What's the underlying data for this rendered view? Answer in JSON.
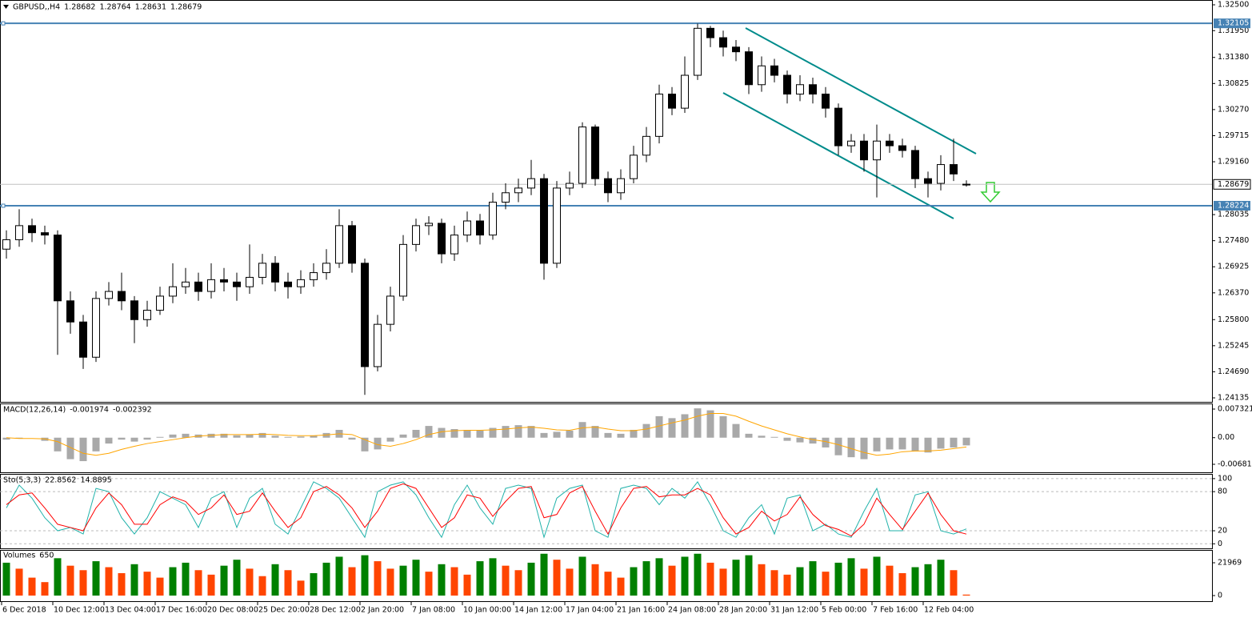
{
  "chart_data": {
    "type": "candlestick",
    "symbol": "GBPUSD,,H4",
    "open": [
      1.273,
      1.275,
      1.278,
      1.2765,
      1.276,
      1.262,
      1.2575,
      1.25,
      1.2625,
      1.264,
      1.262,
      1.258,
      1.26,
      1.263,
      1.265,
      1.266,
      1.264,
      1.2665,
      1.266,
      1.265,
      1.267,
      1.27,
      1.266,
      1.265,
      1.2665,
      1.268,
      1.27,
      1.278,
      1.27,
      1.248,
      1.257,
      1.263,
      1.274,
      1.278,
      1.2785,
      1.272,
      1.276,
      1.279,
      1.276,
      1.283,
      1.285,
      1.286,
      1.288,
      1.27,
      1.286,
      1.287,
      1.299,
      1.288,
      1.285,
      1.288,
      1.293,
      1.297,
      1.306,
      1.303,
      1.31,
      1.32,
      1.318,
      1.316,
      1.315,
      1.308,
      1.312,
      1.31,
      1.306,
      1.308,
      1.306,
      1.303,
      1.295,
      1.296,
      1.292,
      1.296,
      1.295,
      1.294,
      1.288,
      1.287,
      1.291,
      1.28682
    ],
    "high": [
      1.277,
      1.2815,
      1.2795,
      1.278,
      1.277,
      1.264,
      1.259,
      1.264,
      1.266,
      1.268,
      1.263,
      1.262,
      1.265,
      1.27,
      1.269,
      1.268,
      1.27,
      1.269,
      1.268,
      1.274,
      1.272,
      1.2715,
      1.268,
      1.2685,
      1.27,
      1.273,
      1.2815,
      1.279,
      1.271,
      1.259,
      1.265,
      1.276,
      1.2795,
      1.28,
      1.2795,
      1.278,
      1.281,
      1.2805,
      1.285,
      1.287,
      1.288,
      1.292,
      1.289,
      1.2875,
      1.2895,
      1.3,
      1.2995,
      1.2895,
      1.29,
      1.295,
      1.299,
      1.308,
      1.3075,
      1.314,
      1.321,
      1.3205,
      1.3195,
      1.3175,
      1.316,
      1.314,
      1.3135,
      1.311,
      1.31,
      1.3095,
      1.3075,
      1.304,
      1.2975,
      1.2975,
      1.2995,
      1.2975,
      1.2965,
      1.295,
      1.2895,
      1.293,
      1.2965,
      1.28764
    ],
    "low": [
      1.271,
      1.2735,
      1.2745,
      1.274,
      1.2505,
      1.255,
      1.2475,
      1.249,
      1.261,
      1.26,
      1.253,
      1.2565,
      1.259,
      1.2615,
      1.2635,
      1.262,
      1.2625,
      1.264,
      1.262,
      1.2635,
      1.2655,
      1.264,
      1.2625,
      1.2635,
      1.265,
      1.2665,
      1.269,
      1.268,
      1.242,
      1.247,
      1.2555,
      1.262,
      1.2725,
      1.276,
      1.27,
      1.2705,
      1.2745,
      1.274,
      1.275,
      1.2815,
      1.283,
      1.2845,
      1.2665,
      1.269,
      1.2845,
      1.286,
      1.2865,
      1.283,
      1.2835,
      1.287,
      1.2915,
      1.2955,
      1.3015,
      1.302,
      1.309,
      1.316,
      1.314,
      1.313,
      1.306,
      1.3065,
      1.3085,
      1.304,
      1.3045,
      1.304,
      1.301,
      1.293,
      1.2935,
      1.2895,
      1.284,
      1.2935,
      1.2925,
      1.286,
      1.284,
      1.2855,
      1.2875,
      1.28631
    ],
    "close": [
      1.275,
      1.278,
      1.2765,
      1.276,
      1.262,
      1.2575,
      1.25,
      1.2625,
      1.264,
      1.262,
      1.258,
      1.26,
      1.263,
      1.265,
      1.266,
      1.264,
      1.2665,
      1.266,
      1.265,
      1.267,
      1.27,
      1.266,
      1.265,
      1.2665,
      1.268,
      1.27,
      1.278,
      1.27,
      1.248,
      1.257,
      1.263,
      1.274,
      1.278,
      1.2785,
      1.272,
      1.276,
      1.279,
      1.276,
      1.283,
      1.285,
      1.286,
      1.288,
      1.27,
      1.286,
      1.287,
      1.299,
      1.288,
      1.285,
      1.288,
      1.293,
      1.297,
      1.306,
      1.303,
      1.31,
      1.32,
      1.318,
      1.316,
      1.315,
      1.308,
      1.312,
      1.31,
      1.306,
      1.308,
      1.306,
      1.303,
      1.295,
      1.296,
      1.292,
      1.296,
      1.295,
      1.294,
      1.288,
      1.287,
      1.291,
      1.289,
      1.28679
    ],
    "bull_color": "#ffffff",
    "bear_color": "#000000",
    "ylim": [
      1.2405,
      1.32585
    ],
    "yticks": [
      {
        "value": 1.325,
        "label": "1.32500"
      },
      {
        "value": 1.3195,
        "label": "1.31950"
      },
      {
        "value": 1.3138,
        "label": "1.31380"
      },
      1.30825,
      {
        "value": 1.3027,
        "label": "1.30270"
      },
      1.29715,
      {
        "value": 1.2916,
        "label": "1.29160"
      },
      1.28035,
      {
        "value": 1.2748,
        "label": "1.27480"
      },
      1.26925,
      {
        "value": 1.2637,
        "label": "1.26370"
      },
      {
        "value": 1.258,
        "label": "1.25800"
      },
      1.25245,
      {
        "value": 1.2469,
        "label": "1.24690"
      },
      1.24135
    ],
    "levels": [
      1.32105,
      1.28224
    ],
    "level_color": "#4682b4",
    "time_labels": [
      "6 Dec 2018",
      "10 Dec 12:00",
      "13 Dec 04:00",
      "17 Dec 16:00",
      "20 Dec 08:00",
      "25 Dec 20:00",
      "28 Dec 12:00",
      "2 Jan 20:00",
      "7 Jan 08:00",
      "10 Jan 00:00",
      "14 Jan 12:00",
      "17 Jan 04:00",
      "21 Jan 16:00",
      "24 Jan 08:00",
      "28 Jan 20:00",
      "31 Jan 12:00",
      "5 Feb 00:00",
      "7 Feb 16:00",
      "12 Feb 04:00"
    ],
    "macd": {
      "name": "MACD(12,26,14)",
      "histogram": [
        -0.0005,
        -0.0002,
        0.0,
        -0.0008,
        -0.0035,
        -0.0055,
        -0.006,
        -0.0035,
        -0.0015,
        -0.0005,
        -0.001,
        -0.0005,
        0.0002,
        0.0008,
        0.001,
        0.0008,
        0.001,
        0.001,
        0.0006,
        0.0008,
        0.0012,
        0.0005,
        0.0002,
        0.0003,
        0.0005,
        0.0012,
        0.002,
        -0.0005,
        -0.0035,
        -0.003,
        -0.001,
        0.0008,
        0.002,
        0.003,
        0.0025,
        0.0022,
        0.002,
        0.0018,
        0.0025,
        0.003,
        0.0032,
        0.003,
        0.0012,
        0.0015,
        0.0018,
        0.004,
        0.003,
        0.0012,
        0.001,
        0.002,
        0.0035,
        0.0055,
        0.005,
        0.006,
        0.0075,
        0.007,
        0.0055,
        0.0035,
        0.001,
        0.0005,
        0.0002,
        -0.0008,
        -0.0012,
        -0.0015,
        -0.0025,
        -0.0045,
        -0.005,
        -0.0055,
        -0.0035,
        -0.003,
        -0.003,
        -0.0035,
        -0.0038,
        -0.0028,
        -0.0025,
        -0.001974
      ],
      "signal": [
        0.0,
        -0.0002,
        -0.0002,
        -0.0003,
        -0.001,
        -0.0025,
        -0.004,
        -0.0045,
        -0.004,
        -0.003,
        -0.0022,
        -0.0015,
        -0.001,
        -0.0005,
        0.0,
        0.0004,
        0.0006,
        0.0008,
        0.0008,
        0.0008,
        0.0009,
        0.0008,
        0.0006,
        0.0005,
        0.0005,
        0.0007,
        0.001,
        0.0008,
        -0.0005,
        -0.0018,
        -0.0022,
        -0.0015,
        -0.0005,
        0.0008,
        0.0015,
        0.0018,
        0.0019,
        0.0019,
        0.002,
        0.0022,
        0.0025,
        0.0027,
        0.0024,
        0.002,
        0.0019,
        0.0025,
        0.0027,
        0.0022,
        0.0018,
        0.0018,
        0.0022,
        0.003,
        0.0038,
        0.0045,
        0.0055,
        0.0062,
        0.0062,
        0.0055,
        0.0042,
        0.003,
        0.002,
        0.001,
        0.0002,
        -0.0005,
        -0.001,
        -0.0018,
        -0.0028,
        -0.0038,
        -0.0045,
        -0.0042,
        -0.0036,
        -0.0034,
        -0.0034,
        -0.0032,
        -0.0028,
        -0.002392
      ],
      "histogram_color": "#a9a9a9",
      "signal_color": "#ffa500",
      "ylim": [
        -0.00886,
        0.00855
      ],
      "yticks": [
        0.007321,
        {
          "value": 0,
          "label": "0.00"
        },
        -0.006811
      ]
    },
    "stochastic": {
      "name": "Sto(5,3,3)",
      "main": [
        55,
        90,
        70,
        40,
        20,
        25,
        15,
        85,
        80,
        40,
        15,
        40,
        80,
        70,
        60,
        25,
        70,
        80,
        25,
        70,
        85,
        30,
        15,
        55,
        95,
        85,
        70,
        40,
        10,
        80,
        90,
        95,
        75,
        40,
        10,
        60,
        90,
        55,
        30,
        85,
        90,
        85,
        10,
        70,
        85,
        90,
        20,
        10,
        85,
        90,
        85,
        60,
        85,
        70,
        95,
        60,
        20,
        10,
        40,
        60,
        15,
        70,
        75,
        20,
        30,
        15,
        10,
        50,
        85,
        20,
        20,
        75,
        80,
        20,
        15,
        22.8562
      ],
      "signal": [
        60,
        75,
        78,
        55,
        30,
        25,
        20,
        55,
        78,
        60,
        30,
        30,
        60,
        72,
        65,
        45,
        55,
        75,
        45,
        50,
        78,
        50,
        25,
        40,
        80,
        88,
        75,
        55,
        25,
        50,
        85,
        92,
        85,
        55,
        25,
        40,
        75,
        70,
        42,
        65,
        85,
        88,
        40,
        45,
        78,
        88,
        50,
        15,
        55,
        85,
        88,
        72,
        75,
        75,
        85,
        75,
        40,
        15,
        25,
        50,
        35,
        45,
        72,
        45,
        28,
        22,
        12,
        30,
        70,
        45,
        22,
        50,
        78,
        45,
        20,
        14.8895
      ],
      "main_color": "#20b2aa",
      "signal_color": "#ff0000",
      "ylim": [
        -7,
        106
      ],
      "yticks": [
        100,
        80,
        20,
        0
      ]
    },
    "volumes": {
      "name": "Volumes",
      "values": [
        22000,
        18000,
        12000,
        9000,
        25000,
        20000,
        17000,
        23000,
        19000,
        15000,
        21000,
        16000,
        12000,
        19000,
        22000,
        17000,
        14000,
        20000,
        24000,
        18000,
        13000,
        21000,
        17000,
        10000,
        15000,
        22000,
        26000,
        19000,
        27000,
        23000,
        18000,
        20000,
        24000,
        16000,
        21000,
        19000,
        14000,
        23000,
        25000,
        20000,
        17000,
        22000,
        28000,
        24000,
        18000,
        26000,
        21000,
        16000,
        12000,
        19000,
        23000,
        25000,
        20000,
        26000,
        28000,
        22000,
        18000,
        24000,
        27000,
        21000,
        17000,
        14000,
        19000,
        23000,
        16000,
        22000,
        25000,
        18000,
        26000,
        20000,
        15000,
        19000,
        21000,
        24000,
        17000,
        650
      ],
      "up_color": "#008000",
      "down_color": "#ff4500",
      "ylim": [
        -4300,
        30000
      ],
      "yticks": [
        21969,
        0
      ]
    }
  }
}
